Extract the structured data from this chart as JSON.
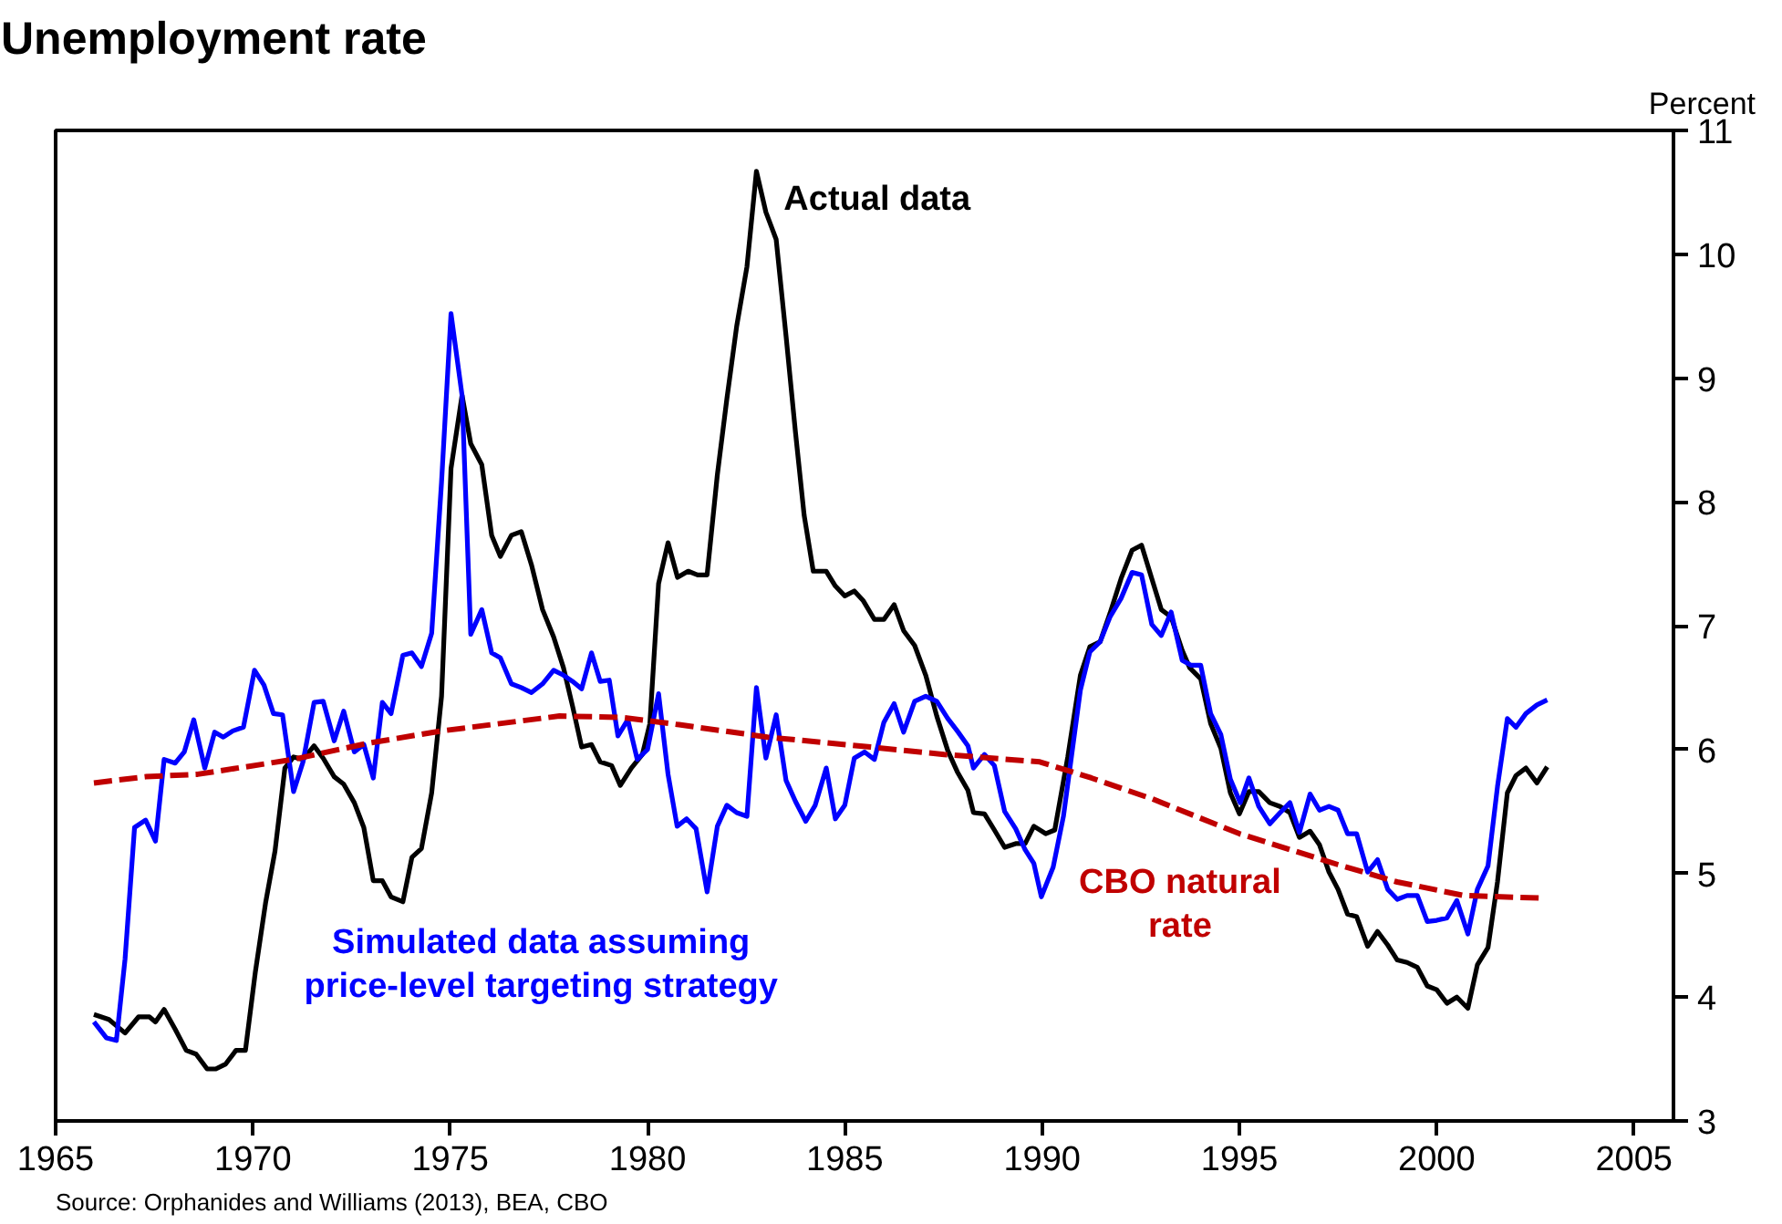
{
  "chart_data": {
    "type": "line",
    "title": "Unemployment rate",
    "ylabel": "Percent",
    "xlim": [
      1965,
      2006
    ],
    "ylim": [
      3,
      11
    ],
    "xticks": [
      1965,
      1970,
      1975,
      1980,
      1985,
      1990,
      1995,
      2000,
      2005
    ],
    "yticks": [
      3,
      4,
      5,
      6,
      7,
      8,
      9,
      10,
      11
    ],
    "annotations": [
      "Source: Orphanides and Williams (2013), BEA, CBO"
    ],
    "series": [
      {
        "name": "Actual data",
        "color": "#000000",
        "line_style": "solid",
        "x": [
          1965.97,
          1966.35,
          1966.76,
          1967.1,
          1967.38,
          1967.53,
          1967.75,
          1968.03,
          1968.31,
          1968.56,
          1968.84,
          1969.06,
          1969.31,
          1969.57,
          1969.81,
          1970.06,
          1970.32,
          1970.56,
          1970.81,
          1971.03,
          1971.27,
          1971.55,
          1971.78,
          1972.06,
          1972.3,
          1972.57,
          1972.81,
          1973.05,
          1973.28,
          1973.5,
          1973.8,
          1974.03,
          1974.27,
          1974.53,
          1974.78,
          1975.02,
          1975.3,
          1975.52,
          1975.8,
          1976.05,
          1976.27,
          1976.55,
          1976.8,
          1977.06,
          1977.34,
          1977.62,
          1977.87,
          1978.1,
          1978.33,
          1978.58,
          1978.8,
          1979.09,
          1979.31,
          1979.59,
          1979.87,
          1980.06,
          1980.28,
          1980.52,
          1980.76,
          1981.03,
          1981.27,
          1981.51,
          1981.77,
          1982.01,
          1982.26,
          1982.52,
          1982.76,
          1983.0,
          1983.26,
          1983.51,
          1983.75,
          1983.97,
          1984.2,
          1984.53,
          1984.76,
          1985.0,
          1985.24,
          1985.47,
          1985.75,
          1985.99,
          1986.25,
          1986.49,
          1986.77,
          1987.05,
          1987.33,
          1987.61,
          1987.85,
          1988.12,
          1988.26,
          1988.54,
          1988.79,
          1989.05,
          1989.33,
          1989.57,
          1989.79,
          1990.09,
          1990.32,
          1990.65,
          1990.97,
          1991.21,
          1991.47,
          1991.72,
          1992.0,
          1992.28,
          1992.52,
          1992.78,
          1993.02,
          1993.27,
          1993.55,
          1993.74,
          1994.02,
          1994.27,
          1994.53,
          1994.77,
          1995.0,
          1995.24,
          1995.49,
          1995.77,
          1996.03,
          1996.28,
          1996.52,
          1996.79,
          1997.03,
          1997.27,
          1997.5,
          1997.74,
          1997.97,
          1998.25,
          1998.5,
          1998.76,
          1999.0,
          1999.25,
          1999.51,
          1999.76,
          2000.0,
          2000.26,
          2000.51,
          2000.79,
          2001.03,
          2001.3,
          2001.54,
          2001.79,
          2002.01,
          2002.26,
          2002.54,
          2002.8
        ],
        "values": [
          3.86,
          3.82,
          3.71,
          3.84,
          3.84,
          3.8,
          3.9,
          3.74,
          3.57,
          3.54,
          3.42,
          3.42,
          3.46,
          3.57,
          3.57,
          4.2,
          4.76,
          5.18,
          5.85,
          5.94,
          5.92,
          6.03,
          5.93,
          5.78,
          5.72,
          5.57,
          5.37,
          4.94,
          4.94,
          4.81,
          4.77,
          5.13,
          5.2,
          5.65,
          6.43,
          8.27,
          8.86,
          8.47,
          8.3,
          7.73,
          7.56,
          7.73,
          7.76,
          7.49,
          7.13,
          6.91,
          6.66,
          6.35,
          6.02,
          6.04,
          5.9,
          5.87,
          5.71,
          5.85,
          5.96,
          6.21,
          7.34,
          7.67,
          7.39,
          7.44,
          7.41,
          7.41,
          8.22,
          8.83,
          9.42,
          9.9,
          10.67,
          10.34,
          10.12,
          9.34,
          8.56,
          7.89,
          7.44,
          7.44,
          7.32,
          7.24,
          7.28,
          7.2,
          7.05,
          7.05,
          7.17,
          6.96,
          6.84,
          6.6,
          6.27,
          5.99,
          5.82,
          5.67,
          5.49,
          5.48,
          5.35,
          5.21,
          5.24,
          5.24,
          5.38,
          5.32,
          5.35,
          5.94,
          6.6,
          6.83,
          6.87,
          7.1,
          7.38,
          7.61,
          7.65,
          7.38,
          7.13,
          7.07,
          6.8,
          6.66,
          6.57,
          6.21,
          6.01,
          5.65,
          5.48,
          5.66,
          5.66,
          5.57,
          5.54,
          5.49,
          5.29,
          5.34,
          5.23,
          5.01,
          4.87,
          4.67,
          4.65,
          4.41,
          4.53,
          4.42,
          4.3,
          4.28,
          4.24,
          4.09,
          4.06,
          3.95,
          4.0,
          3.91,
          4.26,
          4.4,
          4.93,
          5.65,
          5.79,
          5.85,
          5.73,
          5.86
        ]
      },
      {
        "name": "Simulated data assuming\nprice-level targeting strategy",
        "color": "#0000ff",
        "line_style": "solid",
        "x": [
          1965.97,
          1966.29,
          1966.54,
          1966.76,
          1967.0,
          1967.28,
          1967.53,
          1967.75,
          1968.03,
          1968.26,
          1968.5,
          1968.78,
          1969.03,
          1969.25,
          1969.49,
          1969.76,
          1970.04,
          1970.28,
          1970.52,
          1970.75,
          1971.03,
          1971.27,
          1971.55,
          1971.78,
          1972.06,
          1972.3,
          1972.57,
          1972.81,
          1973.05,
          1973.28,
          1973.5,
          1973.8,
          1974.03,
          1974.27,
          1974.53,
          1974.78,
          1975.02,
          1975.3,
          1975.52,
          1975.8,
          1976.05,
          1976.27,
          1976.55,
          1976.8,
          1977.06,
          1977.34,
          1977.62,
          1977.87,
          1978.1,
          1978.33,
          1978.58,
          1978.8,
          1979.03,
          1979.25,
          1979.5,
          1979.74,
          1980.0,
          1980.28,
          1980.52,
          1980.75,
          1980.99,
          1981.23,
          1981.51,
          1981.77,
          1982.01,
          1982.26,
          1982.52,
          1982.76,
          1983.0,
          1983.26,
          1983.51,
          1983.75,
          1984.01,
          1984.25,
          1984.53,
          1984.76,
          1985.0,
          1985.24,
          1985.5,
          1985.75,
          1985.99,
          1986.25,
          1986.49,
          1986.77,
          1987.05,
          1987.33,
          1987.61,
          1987.85,
          1988.12,
          1988.26,
          1988.54,
          1988.79,
          1989.05,
          1989.33,
          1989.57,
          1989.79,
          1989.98,
          1990.28,
          1990.54,
          1990.73,
          1990.97,
          1991.21,
          1991.47,
          1991.72,
          1992.0,
          1992.28,
          1992.52,
          1992.78,
          1993.02,
          1993.27,
          1993.55,
          1993.78,
          1994.02,
          1994.27,
          1994.53,
          1994.77,
          1995.02,
          1995.24,
          1995.49,
          1995.77,
          1996.03,
          1996.28,
          1996.52,
          1996.79,
          1997.03,
          1997.27,
          1997.5,
          1997.74,
          1997.97,
          1998.25,
          1998.5,
          1998.76,
          1999.0,
          1999.25,
          1999.51,
          1999.76,
          2000.0,
          2000.26,
          2000.51,
          2000.79,
          2001.03,
          2001.3,
          2001.54,
          2001.79,
          2002.01,
          2002.26,
          2002.54,
          2002.8
        ],
        "values": [
          3.8,
          3.67,
          3.65,
          4.31,
          5.37,
          5.43,
          5.26,
          5.92,
          5.89,
          5.98,
          6.24,
          5.85,
          6.14,
          6.1,
          6.15,
          6.18,
          6.64,
          6.52,
          6.29,
          6.28,
          5.66,
          5.9,
          6.38,
          6.39,
          6.07,
          6.31,
          5.98,
          6.04,
          5.77,
          6.38,
          6.29,
          6.76,
          6.78,
          6.67,
          6.94,
          8.16,
          9.52,
          8.86,
          6.93,
          7.13,
          6.78,
          6.74,
          6.53,
          6.5,
          6.46,
          6.53,
          6.64,
          6.6,
          6.55,
          6.49,
          6.78,
          6.55,
          6.56,
          6.11,
          6.24,
          5.92,
          6.0,
          6.45,
          5.8,
          5.38,
          5.44,
          5.36,
          4.85,
          5.38,
          5.55,
          5.49,
          5.46,
          6.5,
          5.93,
          6.28,
          5.75,
          5.58,
          5.42,
          5.55,
          5.85,
          5.44,
          5.55,
          5.93,
          5.98,
          5.92,
          6.22,
          6.37,
          6.14,
          6.39,
          6.43,
          6.39,
          6.25,
          6.15,
          6.03,
          5.85,
          5.96,
          5.87,
          5.5,
          5.36,
          5.19,
          5.08,
          4.81,
          5.05,
          5.46,
          5.91,
          6.48,
          6.79,
          6.87,
          7.07,
          7.22,
          7.43,
          7.41,
          7.01,
          6.92,
          7.11,
          6.72,
          6.68,
          6.68,
          6.29,
          6.12,
          5.76,
          5.57,
          5.77,
          5.54,
          5.4,
          5.49,
          5.57,
          5.33,
          5.64,
          5.51,
          5.54,
          5.51,
          5.32,
          5.32,
          5.01,
          5.11,
          4.87,
          4.79,
          4.82,
          4.82,
          4.61,
          4.62,
          4.64,
          4.78,
          4.51,
          4.87,
          5.06,
          5.7,
          6.25,
          6.18,
          6.29,
          6.36,
          6.4
        ]
      },
      {
        "name": "CBO natural\nrate",
        "color": "#c00000",
        "line_style": "dashed",
        "x": [
          1965.97,
          1967.28,
          1968.6,
          1971.03,
          1972.9,
          1974.78,
          1977.77,
          1979.31,
          1980.8,
          1983.04,
          1985.65,
          1987.52,
          1989.94,
          1991.25,
          1992.8,
          1995.0,
          1997.5,
          1999.0,
          2000.7,
          2002.67
        ],
        "values": [
          5.73,
          5.78,
          5.8,
          5.92,
          6.05,
          6.15,
          6.27,
          6.26,
          6.2,
          6.1,
          6.02,
          5.96,
          5.9,
          5.77,
          5.6,
          5.32,
          5.07,
          4.93,
          4.82,
          4.8
        ]
      }
    ]
  }
}
